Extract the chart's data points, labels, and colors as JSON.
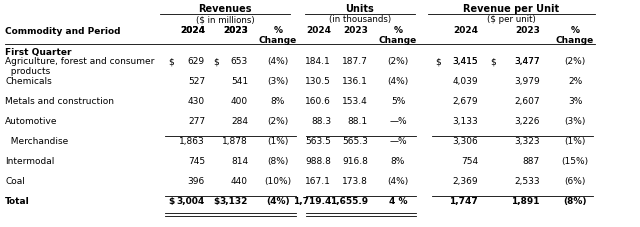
{
  "title_revenues": "Revenues",
  "subtitle_revenues": "($ in millions)",
  "title_units": "Units",
  "subtitle_units": "(in thousands)",
  "title_rpu": "Revenue per Unit",
  "subtitle_rpu": "($ per unit)",
  "col_header_left": "Commodity and Period",
  "section_header": "First Quarter",
  "rows": [
    {
      "label": "Agriculture, forest and consumer\n  products",
      "rev_dollar": "$ 629",
      "rev_2024": "629",
      "rev_dollar2": "$ 653",
      "rev_2023": "653",
      "rev_chg": "(4%)",
      "unit_2024": "184.1",
      "unit_2023": "187.7",
      "unit_chg": "(2%)",
      "rpu_dollar": "$ 3,415",
      "rpu_2024": "3,415",
      "rpu_dollar2": "$ 3,477",
      "rpu_2023": "3,477",
      "rpu_chg": "(2%)",
      "bold": false,
      "top_border": false,
      "double_border": false,
      "show_dollar": true
    },
    {
      "label": "Chemicals",
      "rev_dollar": "",
      "rev_2024": "527",
      "rev_dollar2": "",
      "rev_2023": "541",
      "rev_chg": "(3%)",
      "unit_2024": "130.5",
      "unit_2023": "136.1",
      "unit_chg": "(4%)",
      "rpu_dollar": "",
      "rpu_2024": "4,039",
      "rpu_dollar2": "",
      "rpu_2023": "3,979",
      "rpu_chg": "2%",
      "bold": false,
      "top_border": false,
      "double_border": false,
      "show_dollar": false
    },
    {
      "label": "Metals and construction",
      "rev_dollar": "",
      "rev_2024": "430",
      "rev_dollar2": "",
      "rev_2023": "400",
      "rev_chg": "8%",
      "unit_2024": "160.6",
      "unit_2023": "153.4",
      "unit_chg": "5%",
      "rpu_dollar": "",
      "rpu_2024": "2,679",
      "rpu_dollar2": "",
      "rpu_2023": "2,607",
      "rpu_chg": "3%",
      "bold": false,
      "top_border": false,
      "double_border": false,
      "show_dollar": false
    },
    {
      "label": "Automotive",
      "rev_dollar": "",
      "rev_2024": "277",
      "rev_dollar2": "",
      "rev_2023": "284",
      "rev_chg": "(2%)",
      "unit_2024": "88.3",
      "unit_2023": "88.1",
      "unit_chg": "—%",
      "rpu_dollar": "",
      "rpu_2024": "3,133",
      "rpu_dollar2": "",
      "rpu_2023": "3,226",
      "rpu_chg": "(3%)",
      "bold": false,
      "top_border": false,
      "double_border": false,
      "show_dollar": false
    },
    {
      "label": "  Merchandise",
      "rev_dollar": "",
      "rev_2024": "1,863",
      "rev_dollar2": "",
      "rev_2023": "1,878",
      "rev_chg": "(1%)",
      "unit_2024": "563.5",
      "unit_2023": "565.3",
      "unit_chg": "—%",
      "rpu_dollar": "",
      "rpu_2024": "3,306",
      "rpu_dollar2": "",
      "rpu_2023": "3,323",
      "rpu_chg": "(1%)",
      "bold": false,
      "top_border": true,
      "double_border": false,
      "show_dollar": false
    },
    {
      "label": "Intermodal",
      "rev_dollar": "",
      "rev_2024": "745",
      "rev_dollar2": "",
      "rev_2023": "814",
      "rev_chg": "(8%)",
      "unit_2024": "988.8",
      "unit_2023": "916.8",
      "unit_chg": "8%",
      "rpu_dollar": "",
      "rpu_2024": "754",
      "rpu_dollar2": "",
      "rpu_2023": "887",
      "rpu_chg": "(15%)",
      "bold": false,
      "top_border": false,
      "double_border": false,
      "show_dollar": false
    },
    {
      "label": "Coal",
      "rev_dollar": "",
      "rev_2024": "396",
      "rev_dollar2": "",
      "rev_2023": "440",
      "rev_chg": "(10%)",
      "unit_2024": "167.1",
      "unit_2023": "173.8",
      "unit_chg": "(4%)",
      "rpu_dollar": "",
      "rpu_2024": "2,369",
      "rpu_dollar2": "",
      "rpu_2023": "2,533",
      "rpu_chg": "(6%)",
      "bold": false,
      "top_border": false,
      "double_border": false,
      "show_dollar": false
    },
    {
      "label": "Total",
      "rev_dollar": "$ 3,004",
      "rev_2024": "3,004",
      "rev_dollar2": "$ 3,132",
      "rev_2023": "3,132",
      "rev_chg": "(4%)",
      "unit_2024": "1,719.4",
      "unit_2023": "1,655.9",
      "unit_chg": "4 %",
      "rpu_dollar": "",
      "rpu_2024": "1,747",
      "rpu_dollar2": "",
      "rpu_2023": "1,891",
      "rpu_chg": "(8%)",
      "bold": true,
      "top_border": true,
      "double_border": true,
      "show_dollar": true
    }
  ],
  "bg_color": "#ffffff",
  "text_color": "#000000",
  "font_size": 6.5,
  "header_font_size": 7.0
}
